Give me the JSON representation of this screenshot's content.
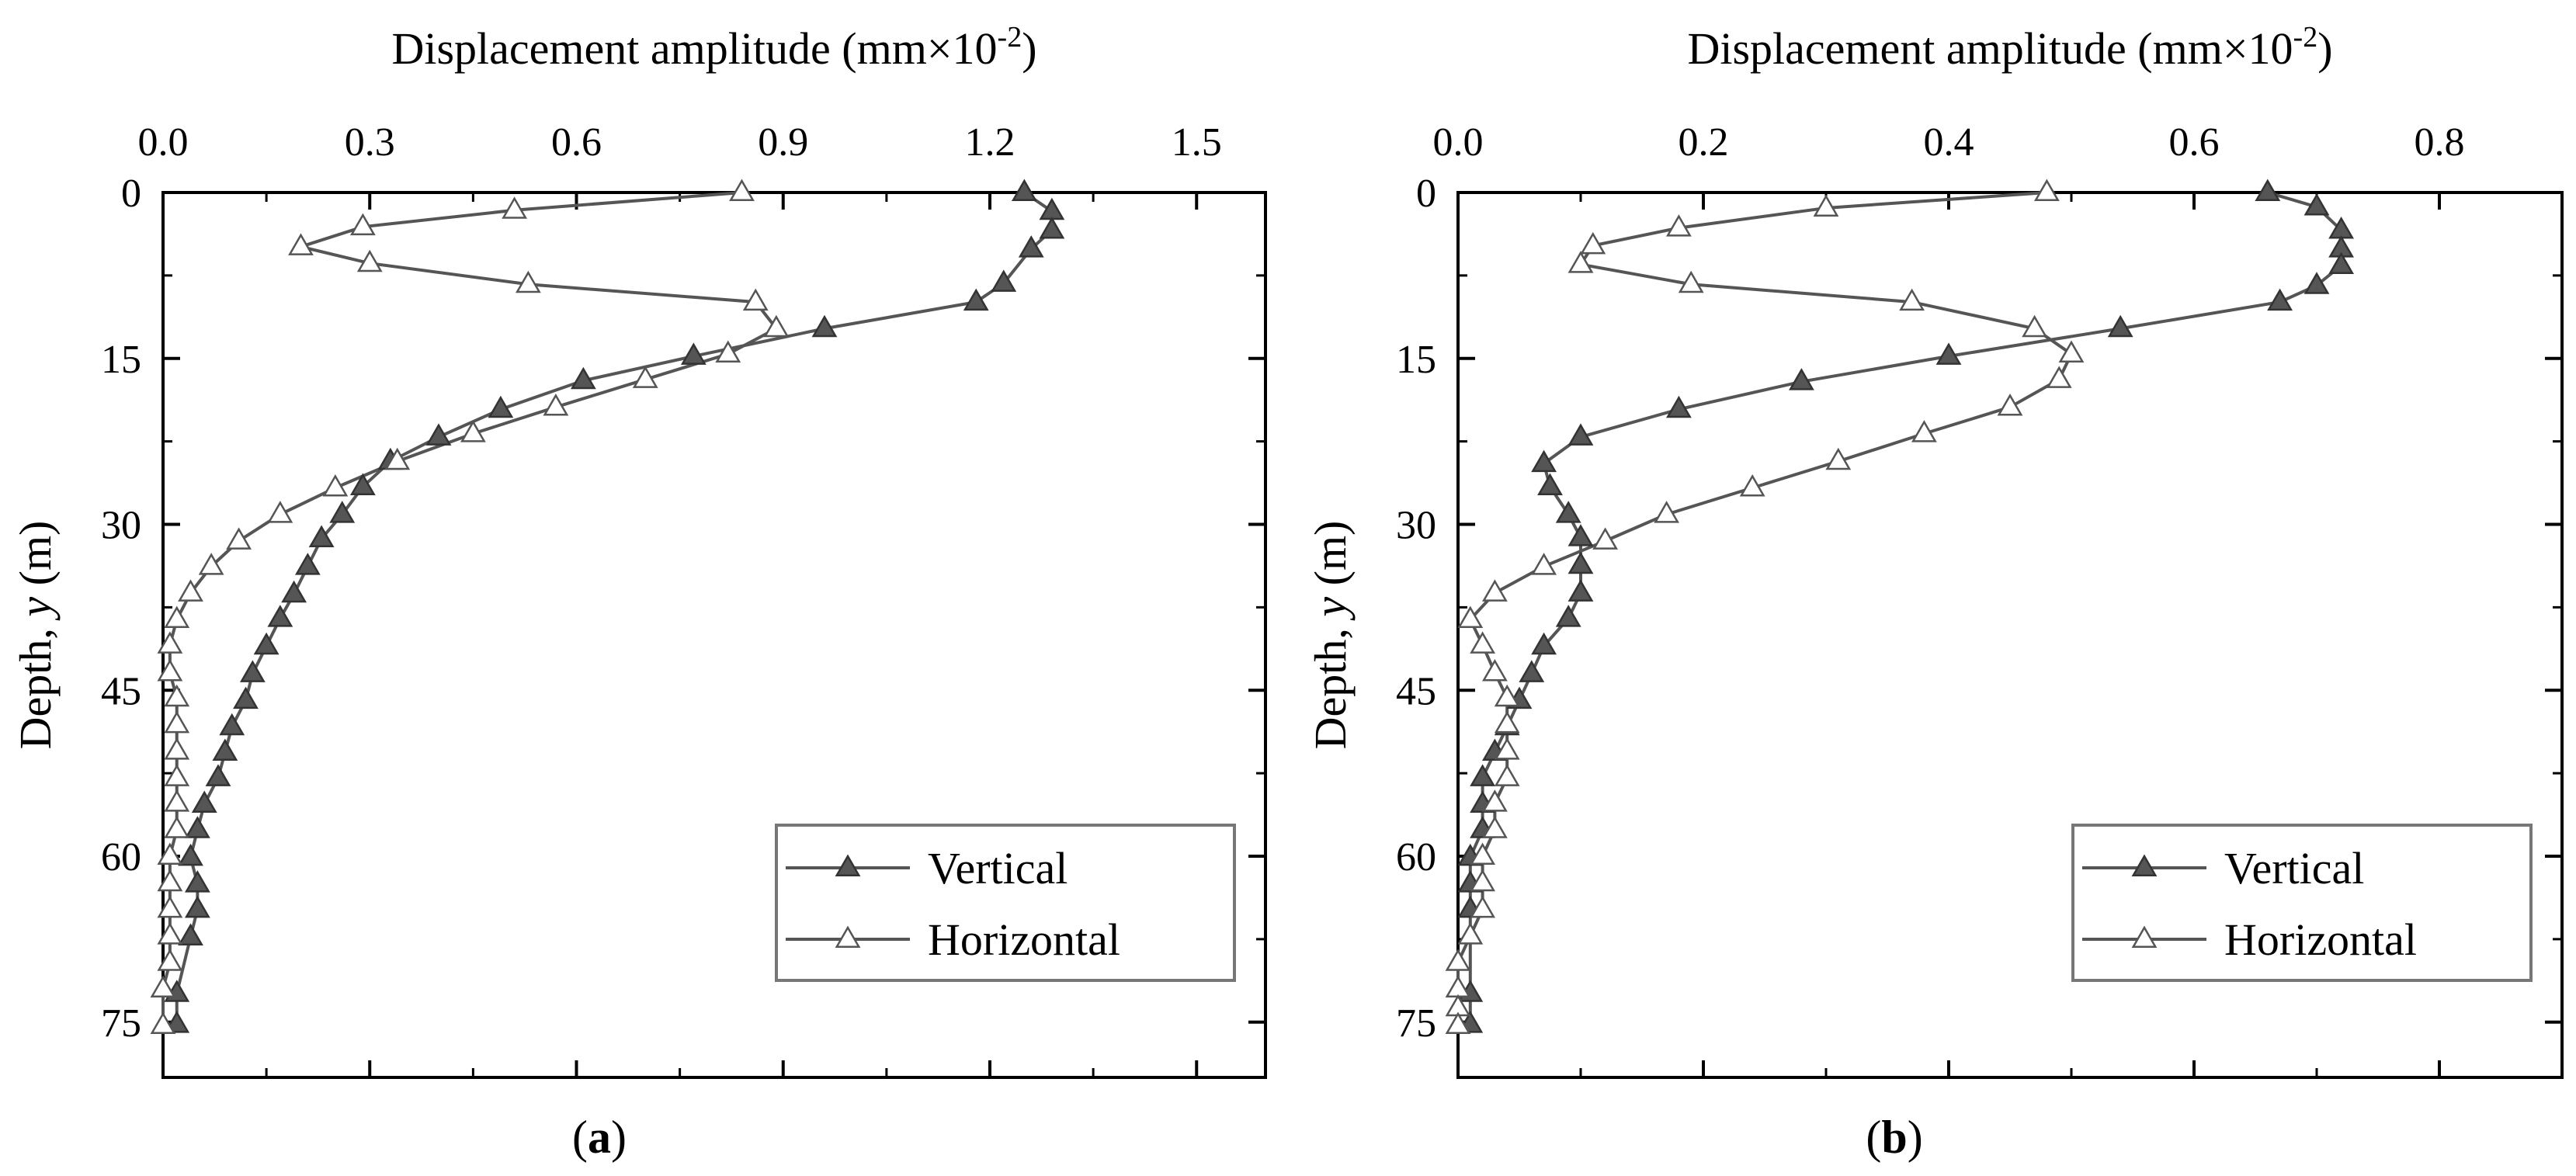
{
  "figure": {
    "panel_labels": [
      "a",
      "b"
    ]
  },
  "chart_data": [
    {
      "type": "line",
      "panel": "a",
      "title": "",
      "xlabel": "Displacement amplitude (mm×10",
      "xlabel_exp": "-2",
      "xlabel_close": ")",
      "ylabel_prefix": "Depth, ",
      "ylabel_var": "y",
      "ylabel_suffix": " (m)",
      "xlim": [
        0,
        1.6
      ],
      "ylim": [
        0,
        80
      ],
      "xticks": [
        0.0,
        0.3,
        0.6,
        0.9,
        1.2,
        1.5
      ],
      "xtick_labels": [
        "0.0",
        "0.3",
        "0.6",
        "0.9",
        "1.2",
        "1.5"
      ],
      "xminor": [
        0.15,
        0.45,
        0.75,
        1.05,
        1.35
      ],
      "yticks": [
        0,
        15,
        30,
        45,
        60,
        75
      ],
      "ytick_labels": [
        "0",
        "15",
        "30",
        "45",
        "60",
        "75"
      ],
      "yminor": [
        7.5,
        22.5,
        37.5,
        52.5,
        67.5
      ],
      "legend_position": "bottom-right",
      "series": [
        {
          "name": "Vertical",
          "marker": "filled-triangle",
          "x": [
            1.25,
            1.29,
            1.29,
            1.26,
            1.22,
            1.18,
            0.96,
            0.77,
            0.61,
            0.49,
            0.4,
            0.33,
            0.29,
            0.26,
            0.23,
            0.21,
            0.19,
            0.17,
            0.15,
            0.13,
            0.12,
            0.1,
            0.09,
            0.08,
            0.06,
            0.05,
            0.04,
            0.05,
            0.05,
            0.04,
            0.02,
            0.02
          ],
          "y": [
            0,
            1.7,
            3.4,
            5.1,
            8.2,
            9.9,
            12.3,
            14.8,
            17.0,
            19.6,
            22.1,
            24.3,
            26.6,
            29.1,
            31.3,
            33.8,
            36.3,
            38.5,
            41.0,
            43.5,
            45.9,
            48.3,
            50.6,
            52.9,
            55.3,
            57.6,
            60.1,
            62.5,
            64.8,
            67.3,
            72.4,
            75.2
          ]
        },
        {
          "name": "Horizontal",
          "marker": "open-triangle",
          "x": [
            0.84,
            0.51,
            0.29,
            0.2,
            0.3,
            0.53,
            0.86,
            0.89,
            0.82,
            0.7,
            0.57,
            0.45,
            0.34,
            0.25,
            0.17,
            0.11,
            0.07,
            0.04,
            0.02,
            0.01,
            0.01,
            0.02,
            0.02,
            0.02,
            0.02,
            0.02,
            0.02,
            0.01,
            0.01,
            0.01,
            0.01,
            0.01,
            0.0,
            0.0
          ],
          "y": [
            0,
            1.6,
            3.1,
            4.9,
            6.4,
            8.3,
            9.9,
            12.3,
            14.6,
            16.9,
            19.4,
            21.8,
            24.3,
            26.7,
            29.1,
            31.5,
            33.8,
            36.2,
            38.6,
            40.9,
            43.4,
            45.7,
            48.1,
            50.5,
            52.9,
            55.2,
            57.6,
            60.0,
            62.4,
            64.8,
            67.2,
            69.6,
            72.0,
            75.3
          ]
        }
      ]
    },
    {
      "type": "line",
      "panel": "b",
      "title": "",
      "xlabel": "Displacement amplitude (mm×10",
      "xlabel_exp": "-2",
      "xlabel_close": ")",
      "ylabel_prefix": "Depth, ",
      "ylabel_var": "y",
      "ylabel_suffix": " (m)",
      "xlim": [
        0,
        0.9
      ],
      "ylim": [
        0,
        80
      ],
      "xticks": [
        0.0,
        0.2,
        0.4,
        0.6,
        0.8
      ],
      "xtick_labels": [
        "0.0",
        "0.2",
        "0.4",
        "0.6",
        "0.8"
      ],
      "xminor": [
        0.1,
        0.3,
        0.5,
        0.7
      ],
      "yticks": [
        0,
        15,
        30,
        45,
        60,
        75
      ],
      "ytick_labels": [
        "0",
        "15",
        "30",
        "45",
        "60",
        "75"
      ],
      "yminor": [
        7.5,
        22.5,
        37.5,
        52.5,
        67.5
      ],
      "legend_position": "bottom-right",
      "series": [
        {
          "name": "Vertical",
          "marker": "filled-triangle",
          "x": [
            0.66,
            0.7,
            0.72,
            0.72,
            0.72,
            0.7,
            0.67,
            0.54,
            0.4,
            0.28,
            0.18,
            0.1,
            0.07,
            0.075,
            0.09,
            0.1,
            0.1,
            0.1,
            0.09,
            0.07,
            0.06,
            0.05,
            0.04,
            0.03,
            0.02,
            0.02,
            0.02,
            0.01,
            0.01,
            0.01,
            0.01,
            0.01
          ],
          "y": [
            0,
            1.3,
            3.4,
            5.1,
            6.6,
            8.4,
            9.9,
            12.3,
            14.8,
            17.1,
            19.6,
            22.1,
            24.5,
            26.6,
            29.1,
            31.2,
            33.7,
            36.2,
            38.5,
            41.0,
            43.5,
            45.9,
            48.3,
            50.6,
            52.9,
            55.3,
            57.6,
            60.1,
            62.5,
            64.8,
            72.4,
            75.2
          ]
        },
        {
          "name": "Horizontal",
          "marker": "open-triangle",
          "x": [
            0.48,
            0.3,
            0.18,
            0.11,
            0.1,
            0.19,
            0.37,
            0.47,
            0.5,
            0.49,
            0.45,
            0.38,
            0.31,
            0.24,
            0.17,
            0.12,
            0.07,
            0.03,
            0.01,
            0.02,
            0.03,
            0.04,
            0.04,
            0.04,
            0.04,
            0.03,
            0.03,
            0.02,
            0.02,
            0.02,
            0.01,
            0.0,
            0.0,
            0.0,
            0.0
          ],
          "y": [
            0,
            1.4,
            3.2,
            4.8,
            6.5,
            8.3,
            9.9,
            12.3,
            14.6,
            16.9,
            19.4,
            21.8,
            24.3,
            26.7,
            29.1,
            31.5,
            33.8,
            36.2,
            38.6,
            40.9,
            43.4,
            45.7,
            48.1,
            50.5,
            52.9,
            55.2,
            57.6,
            60.0,
            62.4,
            64.8,
            67.2,
            69.6,
            72.0,
            73.7,
            75.3
          ]
        }
      ]
    }
  ]
}
